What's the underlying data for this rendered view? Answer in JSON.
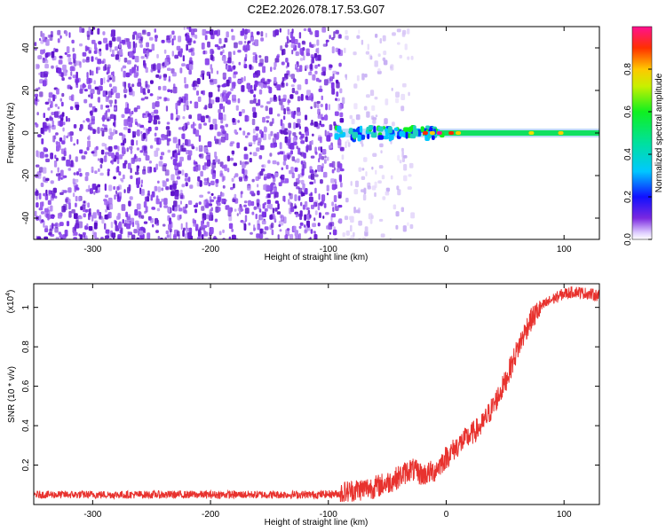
{
  "title": "C2E2.2026.078.17.53.G07",
  "chart_data": [
    {
      "type": "heatmap",
      "name": "spectrogram",
      "xlabel": "Height of straight line (km)",
      "ylabel": "Frequency (Hz)",
      "xlim": [
        -350,
        130
      ],
      "ylim": [
        -50,
        50
      ],
      "xticks": [
        -300,
        -200,
        -100,
        0,
        100
      ],
      "yticks": [
        -40,
        -20,
        0,
        20,
        40
      ],
      "noise_region_km": [
        -350,
        -30
      ],
      "signal_start_km": -95,
      "signal_frequency_hz": 0,
      "colorbar": {
        "label": "Normalized spectral amplitude",
        "range": [
          0.0,
          1.0
        ],
        "ticks": [
          0.0,
          0.2,
          0.4,
          0.6,
          0.8
        ],
        "tick_labels": [
          "0.0",
          "0.2",
          "0.4",
          "0.6",
          "0.8"
        ]
      }
    },
    {
      "type": "line",
      "name": "snr",
      "xlabel": "Height of straight line (km)",
      "ylabel": "SNR (10 * v/v)",
      "y_multiplier": "(x10",
      "y_multiplier_exp": "4",
      "y_multiplier_close": ")",
      "xlim": [
        -350,
        130
      ],
      "ylim": [
        0.0,
        1.12
      ],
      "xticks": [
        -300,
        -200,
        -100,
        0,
        100
      ],
      "yticks": [
        0.2,
        0.4,
        0.6,
        0.8,
        1.0
      ],
      "ytick_labels": [
        "0.2",
        "0.4",
        "0.6",
        "0.8",
        "1"
      ],
      "series": [
        {
          "name": "SNR",
          "color": "#e8322e",
          "x": [
            -350,
            -300,
            -250,
            -200,
            -150,
            -110,
            -90,
            -80,
            -60,
            -50,
            -40,
            -30,
            -20,
            -10,
            0,
            10,
            20,
            30,
            40,
            50,
            60,
            70,
            80,
            90,
            100,
            110,
            120,
            130
          ],
          "y": [
            0.05,
            0.05,
            0.05,
            0.05,
            0.05,
            0.05,
            0.055,
            0.07,
            0.09,
            0.11,
            0.14,
            0.18,
            0.15,
            0.17,
            0.24,
            0.3,
            0.35,
            0.4,
            0.5,
            0.62,
            0.78,
            0.92,
            1.0,
            1.04,
            1.07,
            1.08,
            1.07,
            1.06
          ]
        }
      ]
    }
  ]
}
